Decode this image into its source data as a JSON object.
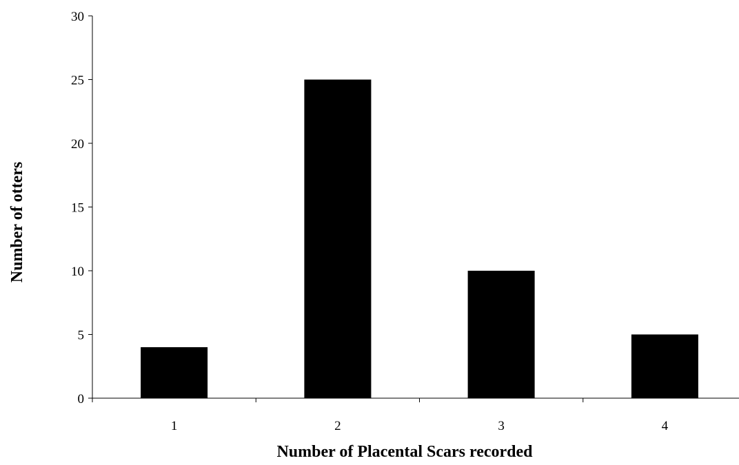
{
  "chart_data": {
    "type": "bar",
    "categories": [
      "1",
      "2",
      "3",
      "4"
    ],
    "values": [
      4,
      25,
      10,
      5
    ],
    "title": "",
    "xlabel": "Number of Placental Scars recorded",
    "ylabel": "Number of otters",
    "ylim": [
      0,
      30
    ],
    "yticks": [
      0,
      5,
      10,
      15,
      20,
      25,
      30
    ],
    "grid": false,
    "legend": "none",
    "bar_color": "#000000"
  }
}
